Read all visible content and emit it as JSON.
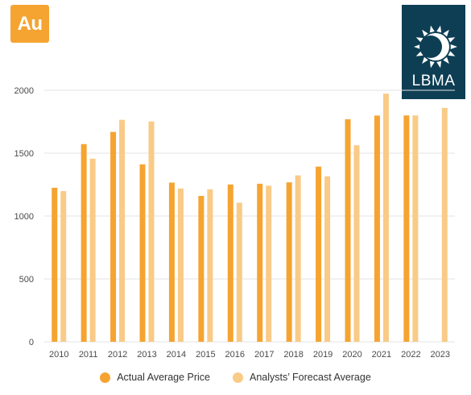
{
  "badge": {
    "label": "Au",
    "color": "#f5a431"
  },
  "logo": {
    "text": "LBMA",
    "icon": "lbma-sun-moon-icon",
    "color": "#0d3e54"
  },
  "colors": {
    "actual": "#f5a431",
    "forecast": "#f9cb87"
  },
  "chart_data": {
    "type": "bar",
    "title": "",
    "xlabel": "",
    "ylabel": "",
    "ylim": [
      0,
      2000
    ],
    "yticks": [
      0,
      500,
      1000,
      1500,
      2000
    ],
    "grid": true,
    "legend_position": "bottom",
    "categories": [
      "2010",
      "2011",
      "2012",
      "2013",
      "2014",
      "2015",
      "2016",
      "2017",
      "2018",
      "2019",
      "2020",
      "2021",
      "2022",
      "2023"
    ],
    "series": [
      {
        "name": "Actual Average Price",
        "values": [
          1225,
          1572,
          1669,
          1411,
          1266,
          1160,
          1251,
          1257,
          1268,
          1393,
          1770,
          1799,
          1800,
          null
        ]
      },
      {
        "name": "Analysts’ Forecast Average",
        "values": [
          1198,
          1456,
          1765,
          1752,
          1219,
          1213,
          1106,
          1241,
          1323,
          1316,
          1563,
          1973,
          1800,
          1860
        ]
      }
    ]
  }
}
